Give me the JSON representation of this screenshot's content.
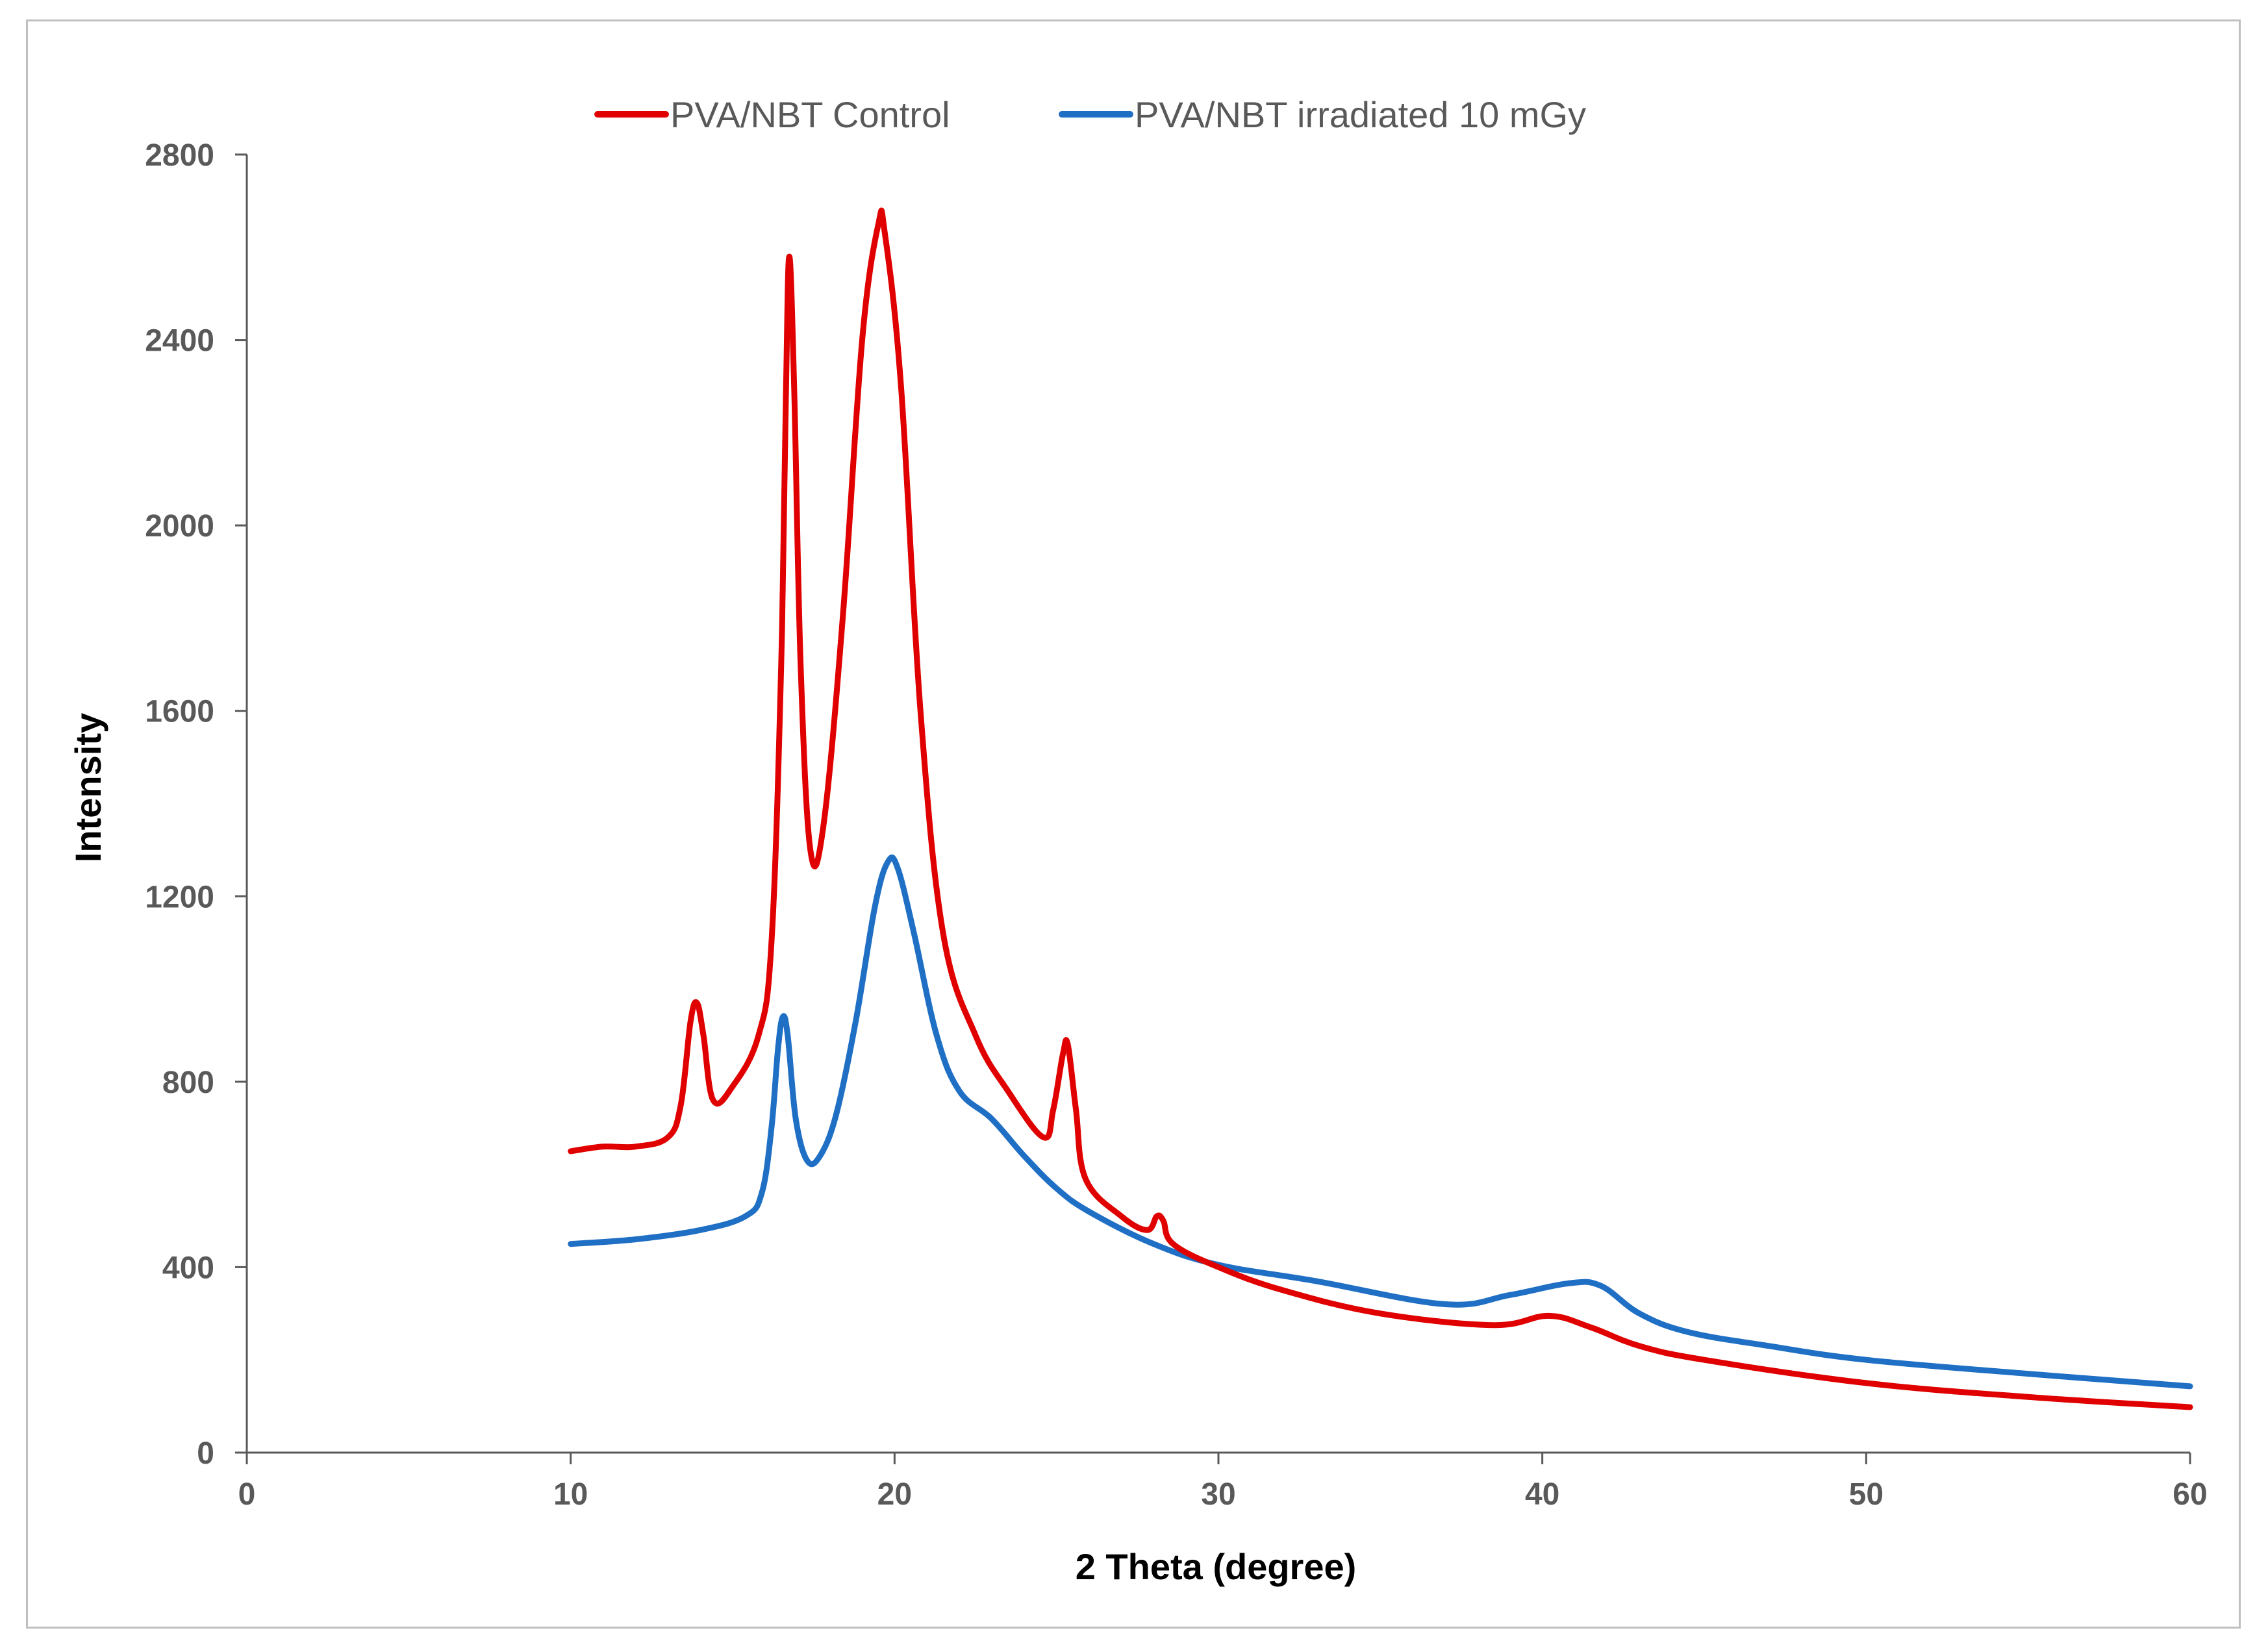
{
  "chart_data": {
    "type": "line",
    "title": "",
    "xlabel": "2 Theta (degree)",
    "ylabel": "Intensity",
    "xlim": [
      0,
      60
    ],
    "ylim": [
      0,
      2800
    ],
    "xticks": [
      0,
      10,
      20,
      30,
      40,
      50,
      60
    ],
    "yticks": [
      0,
      400,
      800,
      1200,
      1600,
      2000,
      2400,
      2800
    ],
    "grid": false,
    "legend": "top",
    "series": [
      {
        "name": "PVA/NBT Control",
        "color": "#e00000",
        "points": [
          [
            10,
            650
          ],
          [
            11,
            660
          ],
          [
            12,
            660
          ],
          [
            13,
            680
          ],
          [
            13.4,
            750
          ],
          [
            13.7,
            930
          ],
          [
            13.9,
            970
          ],
          [
            14.1,
            900
          ],
          [
            14.4,
            760
          ],
          [
            15,
            790
          ],
          [
            15.8,
            900
          ],
          [
            16.2,
            1100
          ],
          [
            16.5,
            1700
          ],
          [
            16.65,
            2300
          ],
          [
            16.75,
            2580
          ],
          [
            16.9,
            2300
          ],
          [
            17.1,
            1700
          ],
          [
            17.4,
            1300
          ],
          [
            17.8,
            1350
          ],
          [
            18.4,
            1800
          ],
          [
            19,
            2400
          ],
          [
            19.5,
            2650
          ],
          [
            19.7,
            2630
          ],
          [
            20.2,
            2300
          ],
          [
            20.8,
            1600
          ],
          [
            21.5,
            1120
          ],
          [
            22.5,
            900
          ],
          [
            23.5,
            780
          ],
          [
            24.6,
            680
          ],
          [
            24.9,
            740
          ],
          [
            25.2,
            860
          ],
          [
            25.35,
            880
          ],
          [
            25.6,
            740
          ],
          [
            25.9,
            590
          ],
          [
            27,
            510
          ],
          [
            27.8,
            480
          ],
          [
            28.1,
            510
          ],
          [
            28.3,
            500
          ],
          [
            28.6,
            450
          ],
          [
            30,
            400
          ],
          [
            32,
            350
          ],
          [
            35,
            300
          ],
          [
            38.5,
            275
          ],
          [
            40.2,
            295
          ],
          [
            41.5,
            270
          ],
          [
            43,
            230
          ],
          [
            45,
            200
          ],
          [
            50,
            150
          ],
          [
            55,
            120
          ],
          [
            60,
            98
          ]
        ]
      },
      {
        "name": "PVA/NBT irradiated 10 mGy",
        "color": "#1f6fc5",
        "points": [
          [
            10,
            450
          ],
          [
            12,
            460
          ],
          [
            14,
            480
          ],
          [
            15.4,
            510
          ],
          [
            15.9,
            560
          ],
          [
            16.2,
            700
          ],
          [
            16.4,
            870
          ],
          [
            16.55,
            940
          ],
          [
            16.7,
            900
          ],
          [
            16.95,
            720
          ],
          [
            17.3,
            630
          ],
          [
            17.7,
            640
          ],
          [
            18.2,
            730
          ],
          [
            18.8,
            930
          ],
          [
            19.4,
            1180
          ],
          [
            19.8,
            1275
          ],
          [
            20.1,
            1260
          ],
          [
            20.6,
            1120
          ],
          [
            21.3,
            900
          ],
          [
            22,
            780
          ],
          [
            23,
            720
          ],
          [
            24,
            640
          ],
          [
            25,
            570
          ],
          [
            26,
            520
          ],
          [
            28,
            450
          ],
          [
            30,
            405
          ],
          [
            33,
            370
          ],
          [
            37,
            320
          ],
          [
            39,
            340
          ],
          [
            40.8,
            365
          ],
          [
            41.8,
            360
          ],
          [
            43,
            300
          ],
          [
            44.5,
            260
          ],
          [
            47,
            230
          ],
          [
            50,
            200
          ],
          [
            55,
            170
          ],
          [
            60,
            143
          ]
        ]
      }
    ]
  }
}
